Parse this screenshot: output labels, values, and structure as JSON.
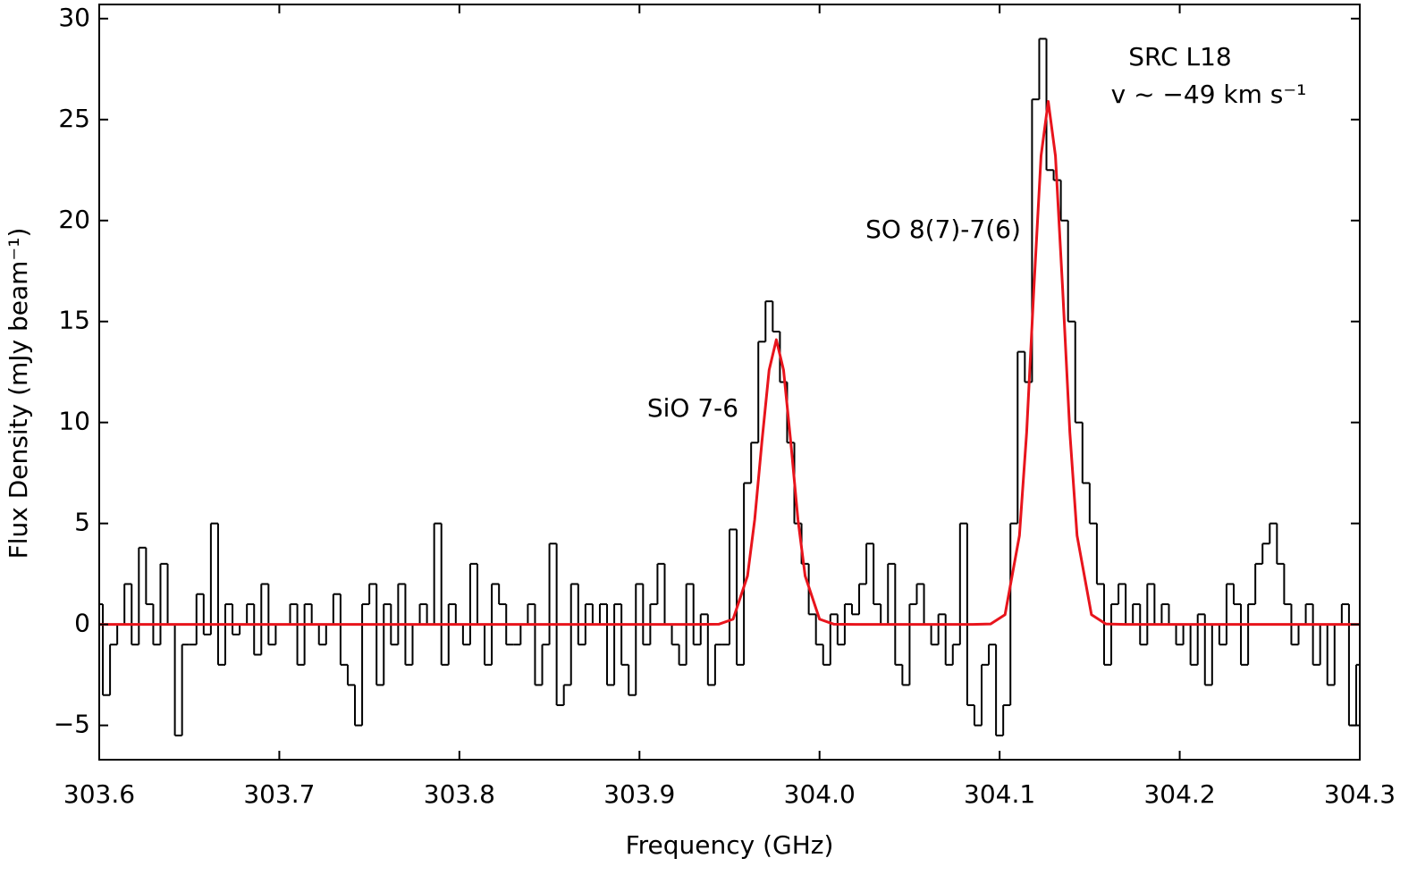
{
  "chart_data": {
    "type": "step",
    "xlabel": "Frequency (GHz)",
    "ylabel": "Flux Density (mJy beam⁻¹)",
    "annotations": [
      "SRC L18",
      "v ~ −49 km s⁻¹",
      "SiO 7-6",
      "SO 8(7)-7(6)"
    ],
    "xlim": [
      303.6,
      304.3
    ],
    "ylim": [
      -6.7,
      30.7
    ],
    "xticks": [
      303.6,
      303.7,
      303.8,
      303.9,
      {
        "value": 304.0,
        "label": "304.0"
      },
      304.1,
      304.2,
      304.3
    ],
    "yticks": [
      {
        "value": -5,
        "label": "−5"
      },
      0,
      5,
      10,
      15,
      20,
      25,
      30
    ],
    "step_width": 0.004,
    "series": [
      {
        "color": "#000000",
        "x0": 303.6,
        "values": [
          1,
          -3.5,
          -1,
          0,
          2,
          -1,
          3.8,
          1,
          -1,
          3,
          0,
          -5.5,
          -1,
          -1,
          1.5,
          -0.5,
          5,
          -2,
          1,
          -0.5,
          0,
          1,
          -1.5,
          2,
          -1,
          0,
          0,
          1,
          -2,
          1,
          0,
          -1,
          0,
          1.5,
          -2,
          -3,
          -5,
          1,
          2,
          -3,
          1,
          -1,
          2,
          -2,
          0,
          1,
          0,
          5,
          -2,
          1,
          0,
          -1,
          3,
          0,
          -2,
          2,
          1,
          -1,
          -1,
          0,
          1,
          -3,
          -1,
          4,
          -4,
          -3,
          2,
          -1,
          1,
          0,
          1,
          -3,
          1,
          -2,
          -3.5,
          2,
          -1,
          1,
          3,
          0,
          -1,
          -2,
          2,
          -1,
          0.5,
          -3,
          -1,
          -1,
          4.7,
          -2,
          7,
          9,
          14,
          16,
          14.5,
          12,
          9,
          5,
          3,
          0.5,
          -1,
          -2,
          0.5,
          -1,
          1,
          0.5,
          2,
          4,
          1,
          0,
          3,
          -2,
          -3,
          1,
          2,
          0,
          -1,
          0.5,
          -2,
          -1,
          5,
          -4,
          -5,
          -2,
          -1,
          -5.5,
          -4,
          5,
          13.5,
          12,
          26,
          29,
          22.5,
          22,
          20,
          15,
          10,
          7,
          5,
          2,
          -2,
          1,
          2,
          0,
          1,
          -1,
          2,
          0,
          1,
          0,
          -1,
          0,
          -2,
          0.5,
          -3,
          0,
          -1,
          2,
          1,
          -2,
          1,
          3,
          4,
          5,
          3,
          1,
          -1,
          0,
          1,
          -2,
          0,
          -3,
          0,
          1,
          -5,
          -2
        ]
      },
      {
        "color": "#e8141c",
        "x": [
          303.6,
          303.93,
          303.944,
          303.952,
          303.96,
          303.964,
          303.968,
          303.972,
          303.976,
          303.98,
          303.984,
          303.988,
          303.992,
          304.0,
          304.008,
          304.02,
          304.085,
          304.095,
          304.103,
          304.111,
          304.115,
          304.119,
          304.123,
          304.127,
          304.131,
          304.135,
          304.139,
          304.143,
          304.151,
          304.159,
          304.17,
          304.3
        ],
        "values": [
          0,
          0,
          0.01,
          0.26,
          2.4,
          5.2,
          9.05,
          12.6,
          14.1,
          12.6,
          9.05,
          5.2,
          2.4,
          0.26,
          0.01,
          0,
          0,
          0.02,
          0.48,
          4.4,
          9.5,
          16.6,
          23.2,
          25.9,
          23.2,
          16.6,
          9.5,
          4.4,
          0.48,
          0.02,
          0,
          0
        ]
      }
    ]
  }
}
